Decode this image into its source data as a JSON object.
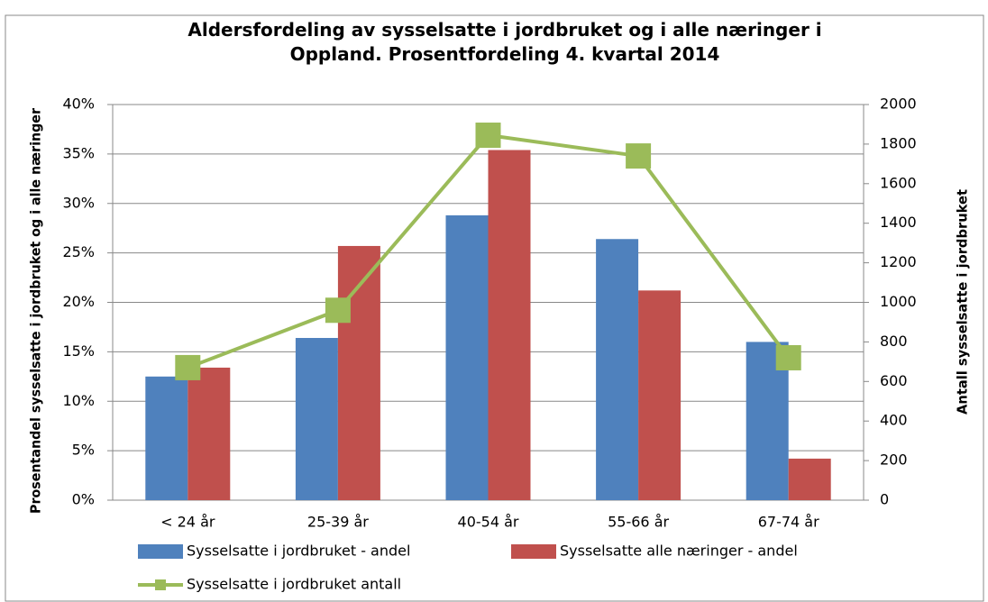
{
  "chart_data": {
    "type": "bar",
    "title": "Aldersfordeling av sysselsatte i jordbruket og i alle næringer i Oppland. Prosentfordeling 4. kvartal 2014",
    "y_label": "Prosentandel sysselsatte i jordbruket og i alle næringer",
    "y2_label": "Antall sysselsatte i jordbruket",
    "categories": [
      "< 24 år",
      "25-39 år",
      "40-54 år",
      "55-66 år",
      "67-74 år"
    ],
    "series": [
      {
        "name": "Sysselsatte i jordbruket - andel",
        "color": "#4f81bd",
        "values": [
          12.5,
          16.4,
          28.8,
          26.4,
          16.0
        ]
      },
      {
        "name": "Sysselsatte alle næringer - andel",
        "color": "#c0504d",
        "values": [
          13.4,
          25.7,
          35.4,
          21.2,
          4.2
        ]
      },
      {
        "name": "Sysselsatte i jordbruket antall",
        "color": "#9bbb59",
        "type": "line",
        "axis": "y2",
        "values": [
          670,
          960,
          1845,
          1740,
          720
        ]
      }
    ],
    "ylim": [
      0,
      40
    ],
    "yticks": [
      {
        "value": 0,
        "label": "0%"
      },
      {
        "value": 5,
        "label": "5%"
      },
      {
        "value": 10,
        "label": "10%"
      },
      {
        "value": 15,
        "label": "15%"
      },
      {
        "value": 20,
        "label": "20%"
      },
      {
        "value": 25,
        "label": "25%"
      },
      {
        "value": 30,
        "label": "30%"
      },
      {
        "value": 35,
        "label": "35%"
      },
      {
        "value": 40,
        "label": "40%"
      }
    ],
    "y2lim": [
      0,
      2000
    ],
    "y2ticks": [
      0,
      200,
      400,
      600,
      800,
      1000,
      1200,
      1400,
      1600,
      1800,
      2000
    ],
    "grid": true
  }
}
